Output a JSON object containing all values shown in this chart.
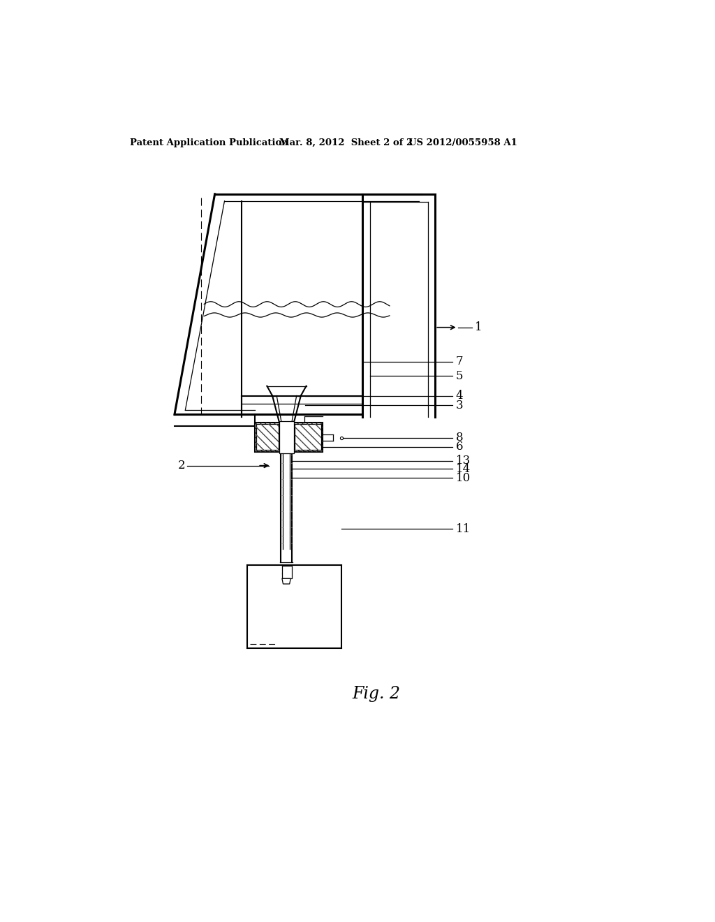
{
  "background_color": "#ffffff",
  "header_left": "Patent Application Publication",
  "header_mid": "Mar. 8, 2012  Sheet 2 of 2",
  "header_right": "US 2012/0055958 A1",
  "fig_label": "Fig. 2",
  "line_color": "#000000",
  "text_color": "#000000",
  "lw_thin": 0.9,
  "lw_med": 1.5,
  "lw_thick": 2.2
}
